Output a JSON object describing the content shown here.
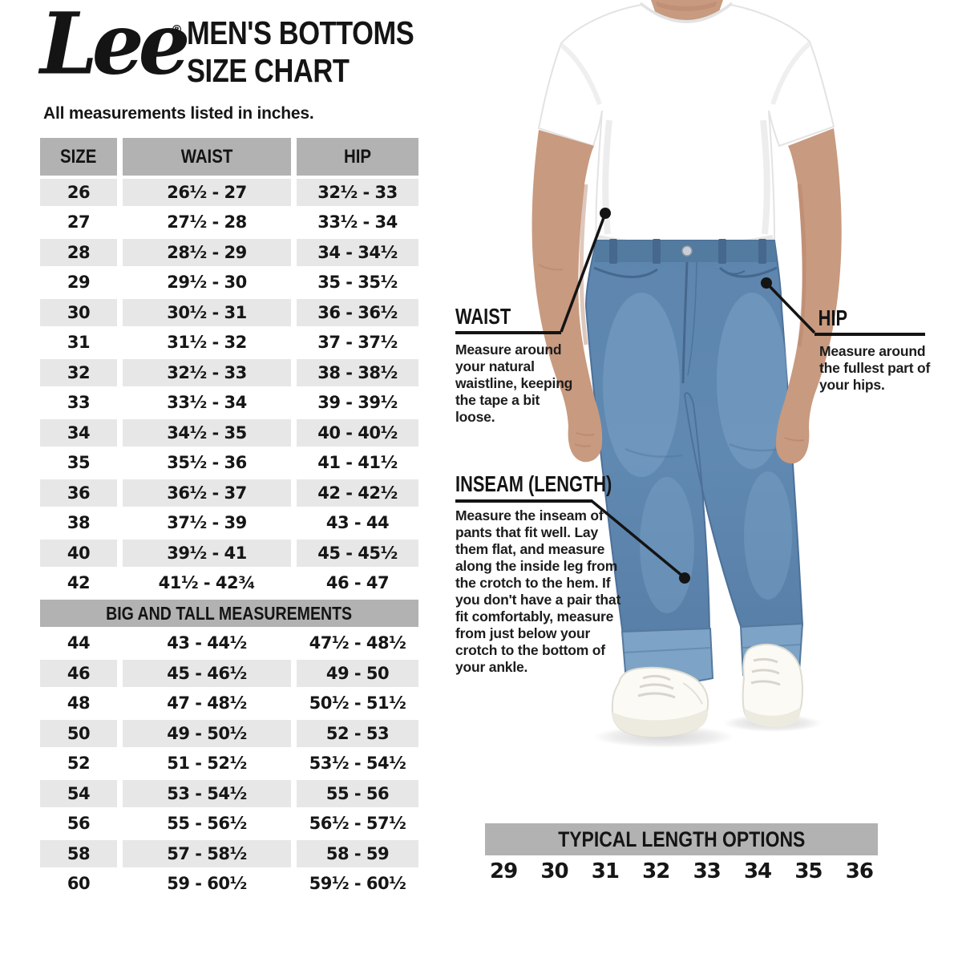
{
  "header": {
    "logo": "Lee",
    "registered": "®",
    "title_line1": "MEN'S BOTTOMS",
    "title_line2": "SIZE CHART",
    "subtitle": "All measurements listed in inches."
  },
  "size_table": {
    "columns": [
      "SIZE",
      "WAIST",
      "HIP"
    ],
    "rows": [
      [
        "26",
        "26½ - 27",
        "32½ - 33"
      ],
      [
        "27",
        "27½ - 28",
        "33½ - 34"
      ],
      [
        "28",
        "28½ - 29",
        "34 - 34½"
      ],
      [
        "29",
        "29½ - 30",
        "35 - 35½"
      ],
      [
        "30",
        "30½ - 31",
        "36 - 36½"
      ],
      [
        "31",
        "31½ - 32",
        "37 - 37½"
      ],
      [
        "32",
        "32½ - 33",
        "38 - 38½"
      ],
      [
        "33",
        "33½ - 34",
        "39 - 39½"
      ],
      [
        "34",
        "34½ - 35",
        "40 - 40½"
      ],
      [
        "35",
        "35½ - 36",
        "41 - 41½"
      ],
      [
        "36",
        "36½ - 37",
        "42 - 42½"
      ],
      [
        "38",
        "37½ - 39",
        "43 - 44"
      ],
      [
        "40",
        "39½ - 41",
        "45 - 45½"
      ],
      [
        "42",
        "41½ - 42¾",
        "46 - 47"
      ]
    ],
    "big_and_tall_label": "BIG AND TALL MEASUREMENTS",
    "big_and_tall_rows": [
      [
        "44",
        "43 - 44½",
        "47½ - 48½"
      ],
      [
        "46",
        "45 - 46½",
        "49 - 50"
      ],
      [
        "48",
        "47 - 48½",
        "50½ - 51½"
      ],
      [
        "50",
        "49 - 50½",
        "52 - 53"
      ],
      [
        "52",
        "51 - 52½",
        "53½ - 54½"
      ],
      [
        "54",
        "53 - 54½",
        "55 - 56"
      ],
      [
        "56",
        "55 - 56½",
        "56½ - 57½"
      ],
      [
        "58",
        "57 - 58½",
        "58 - 59"
      ],
      [
        "60",
        "59 - 60½",
        "59½ - 60½"
      ]
    ]
  },
  "annotations": {
    "waist": {
      "label": "WAIST",
      "text": "Measure around your natural waistline, keeping the tape a bit loose."
    },
    "hip": {
      "label": "HIP",
      "text": "Measure around the fullest part of your hips."
    },
    "inseam": {
      "label": "INSEAM (LENGTH)",
      "text": "Measure the inseam of pants that fit well. Lay them flat, and measure along the inside leg from the crotch to the hem. If you don't have a pair that fit comfortably, measure from just below your crotch to the bottom of your ankle."
    }
  },
  "length_options": {
    "label": "TYPICAL LENGTH OPTIONS",
    "values": [
      "29",
      "30",
      "31",
      "32",
      "33",
      "34",
      "35",
      "36"
    ]
  },
  "colors": {
    "header_bar_gray": "#b2b2b2",
    "row_alt_gray": "#e7e7e7",
    "text_black": "#161616",
    "denim_blue": "#5f87af",
    "denim_light": "#7ea4c8",
    "skin_tone": "#c89a7f",
    "annotation_black": "#141414"
  }
}
